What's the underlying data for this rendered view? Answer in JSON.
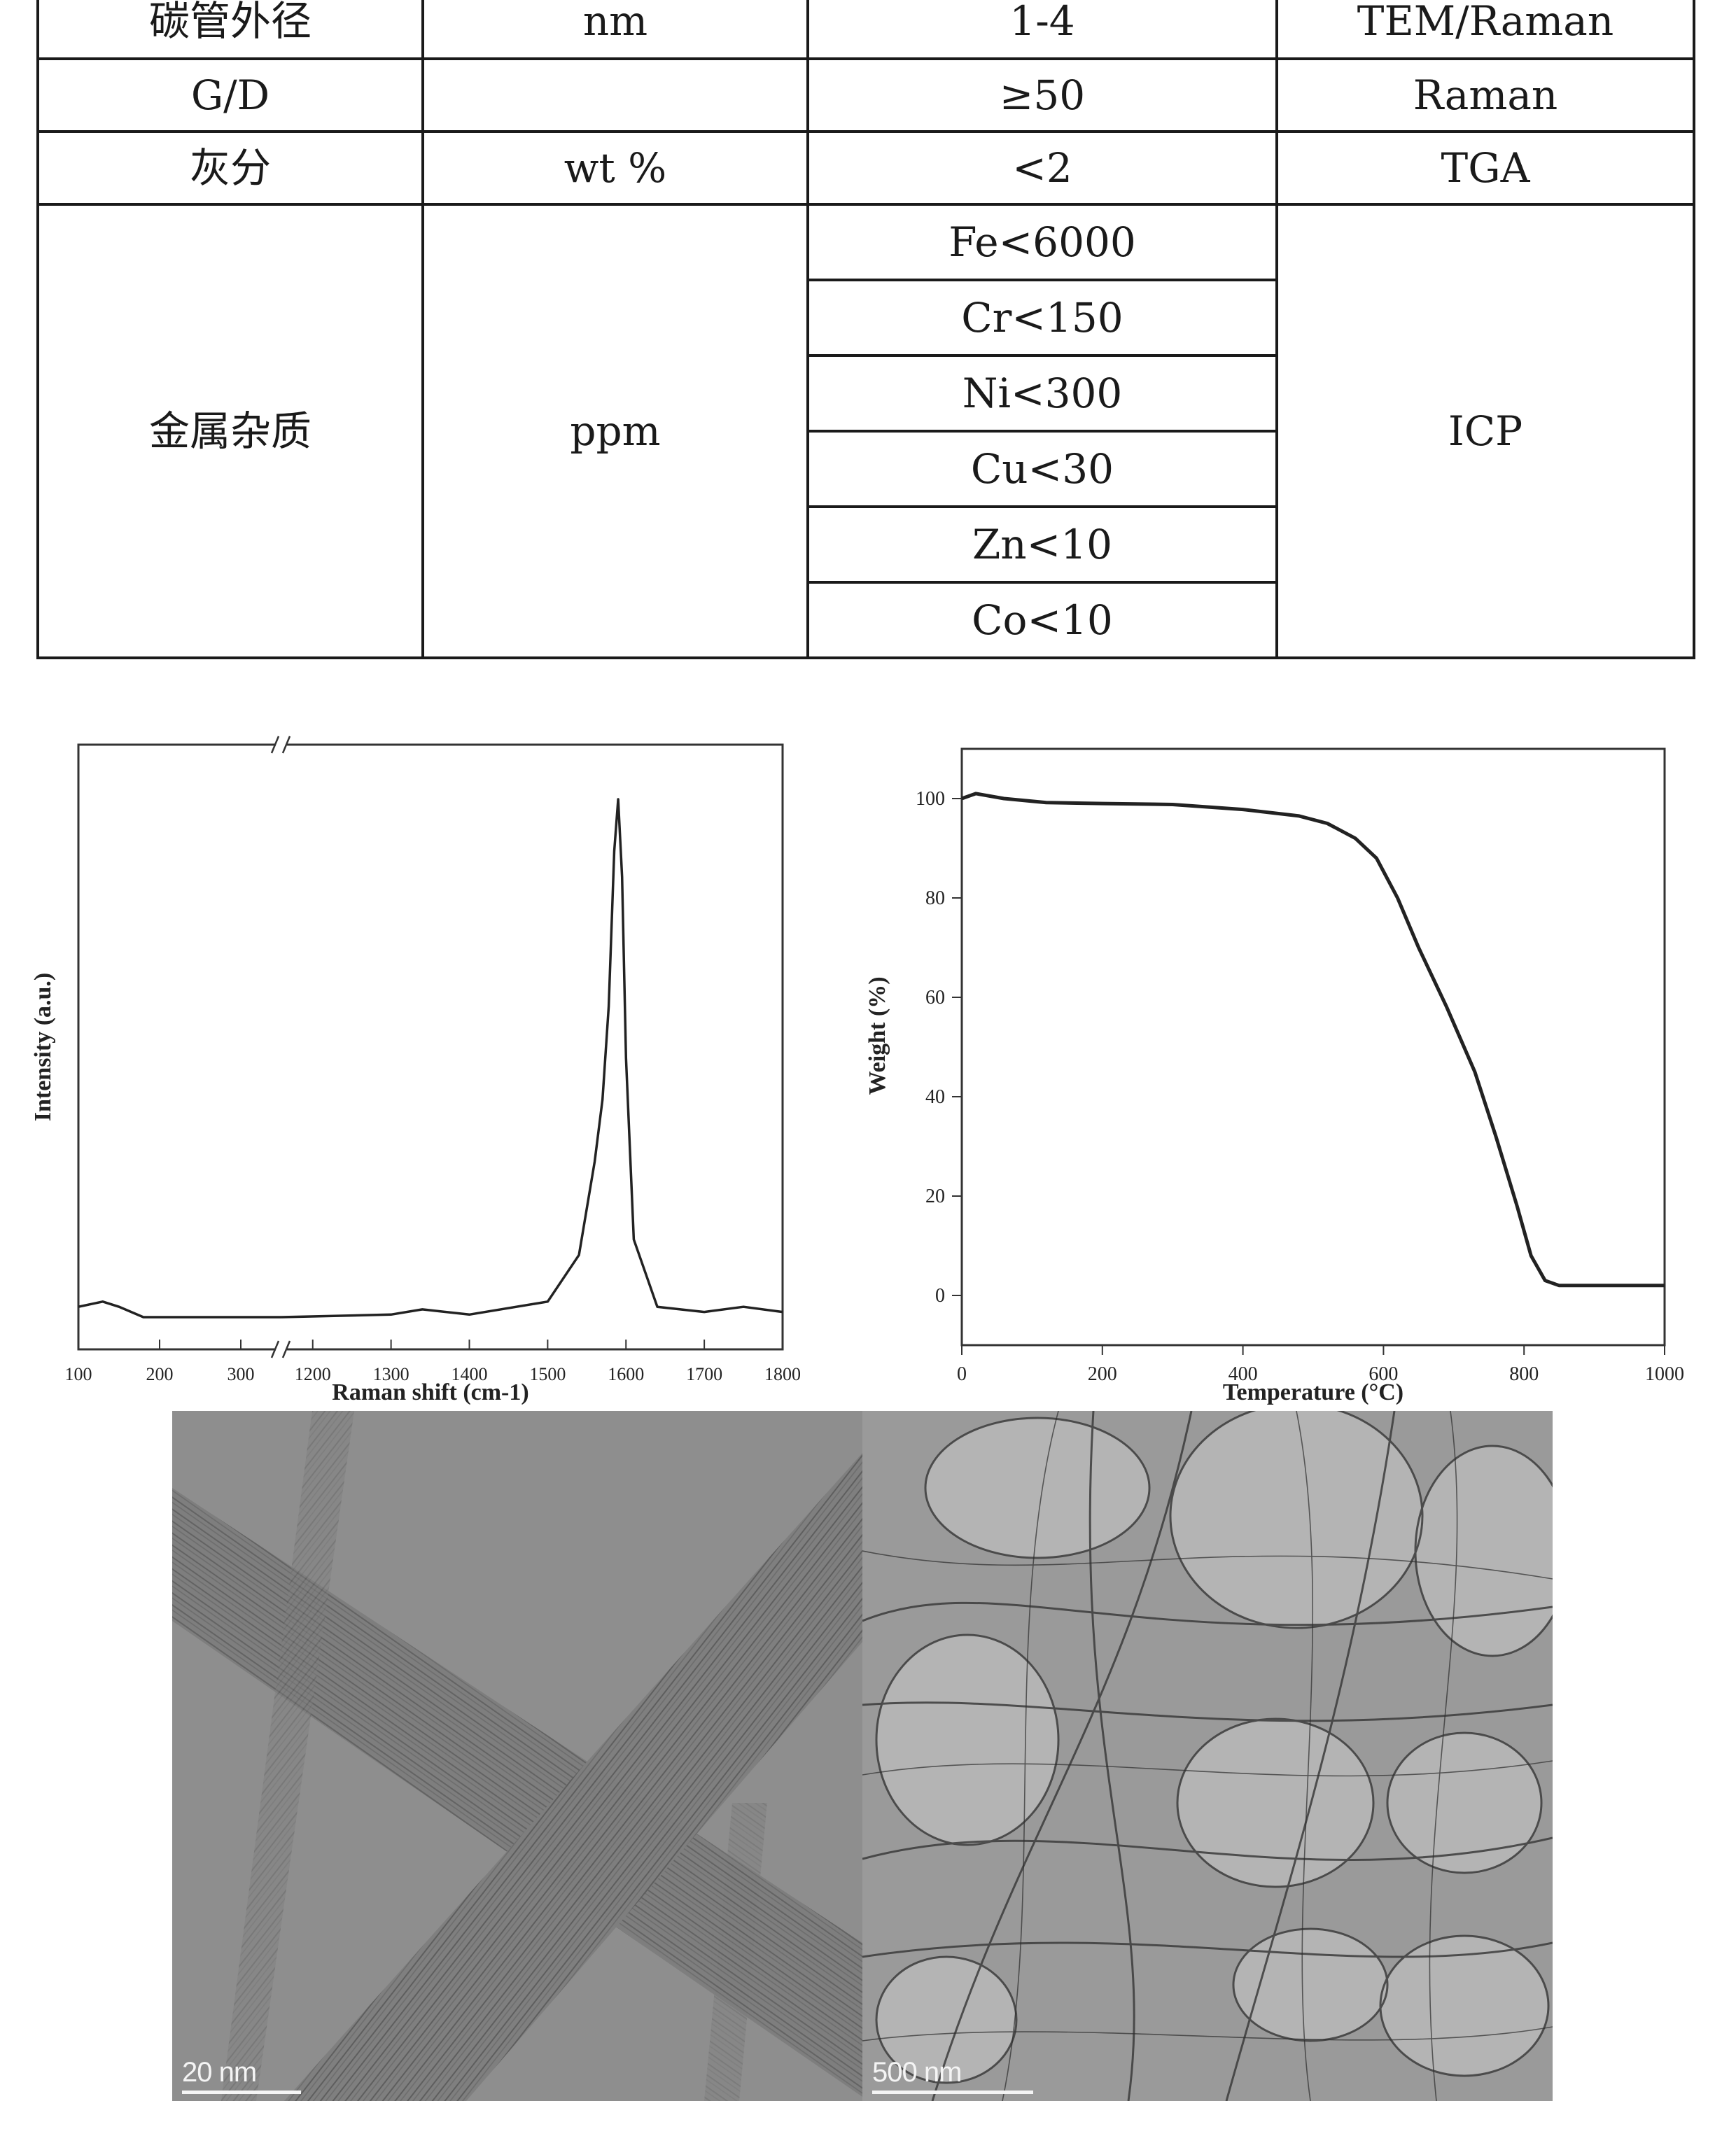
{
  "table": {
    "rows": [
      {
        "name": "碳管外径",
        "unit": "nm",
        "value": "1-4",
        "method": "TEM/Raman"
      },
      {
        "name": "G/D",
        "unit": "",
        "value": "≥50",
        "method": "Raman"
      },
      {
        "name": "灰分",
        "unit": "wt %",
        "value": "<2",
        "method": "TGA"
      }
    ],
    "metal": {
      "name": "金属杂质",
      "unit": "ppm",
      "method": "ICP",
      "values": [
        "Fe<6000",
        "Cr<150",
        "Ni<300",
        "Cu<30",
        "Zn<10",
        "Co<10"
      ]
    }
  },
  "raman_chart": {
    "chart_data": {
      "type": "line",
      "xlabel": "Raman shift (cm-1)",
      "ylabel": "Intensity (a.u.)",
      "x_ticks_left": [
        100,
        200,
        300
      ],
      "x_ticks_right": [
        1200,
        1300,
        1400,
        1500,
        1600,
        1700,
        1800
      ],
      "axis_break": true,
      "series": [
        {
          "x": [
            100,
            130,
            150,
            180,
            250,
            350
          ],
          "y": [
            0.02,
            0.03,
            0.02,
            0.0,
            0.0,
            0.0
          ]
        },
        {
          "x": [
            1160,
            1300,
            1340,
            1400,
            1500,
            1540,
            1560,
            1570,
            1578,
            1585,
            1590,
            1595,
            1600,
            1610,
            1640,
            1700,
            1750,
            1800
          ],
          "y": [
            0.0,
            0.005,
            0.015,
            0.005,
            0.03,
            0.12,
            0.3,
            0.42,
            0.6,
            0.9,
            1.0,
            0.85,
            0.5,
            0.15,
            0.02,
            0.01,
            0.02,
            0.01
          ]
        }
      ]
    }
  },
  "tga_chart": {
    "chart_data": {
      "type": "line",
      "xlabel": "Temperature (°C)",
      "ylabel": "Weight (%)",
      "xlim": [
        0,
        1000
      ],
      "ylim": [
        -10,
        110
      ],
      "x_ticks": [
        0,
        200,
        400,
        600,
        800,
        1000
      ],
      "y_ticks": [
        0,
        20,
        40,
        60,
        80,
        100
      ],
      "series": [
        {
          "x": [
            0,
            20,
            60,
            120,
            200,
            300,
            400,
            480,
            520,
            560,
            590,
            620,
            650,
            690,
            730,
            760,
            790,
            810,
            830,
            850,
            900,
            1000
          ],
          "y": [
            100,
            101,
            100,
            99.2,
            99,
            98.8,
            97.8,
            96.5,
            95,
            92,
            88,
            80,
            70,
            58,
            45,
            32,
            18,
            8,
            3,
            2,
            2,
            2
          ]
        }
      ]
    }
  },
  "tem_images": [
    {
      "scale": "20 nm"
    },
    {
      "scale": "500 nm"
    }
  ]
}
